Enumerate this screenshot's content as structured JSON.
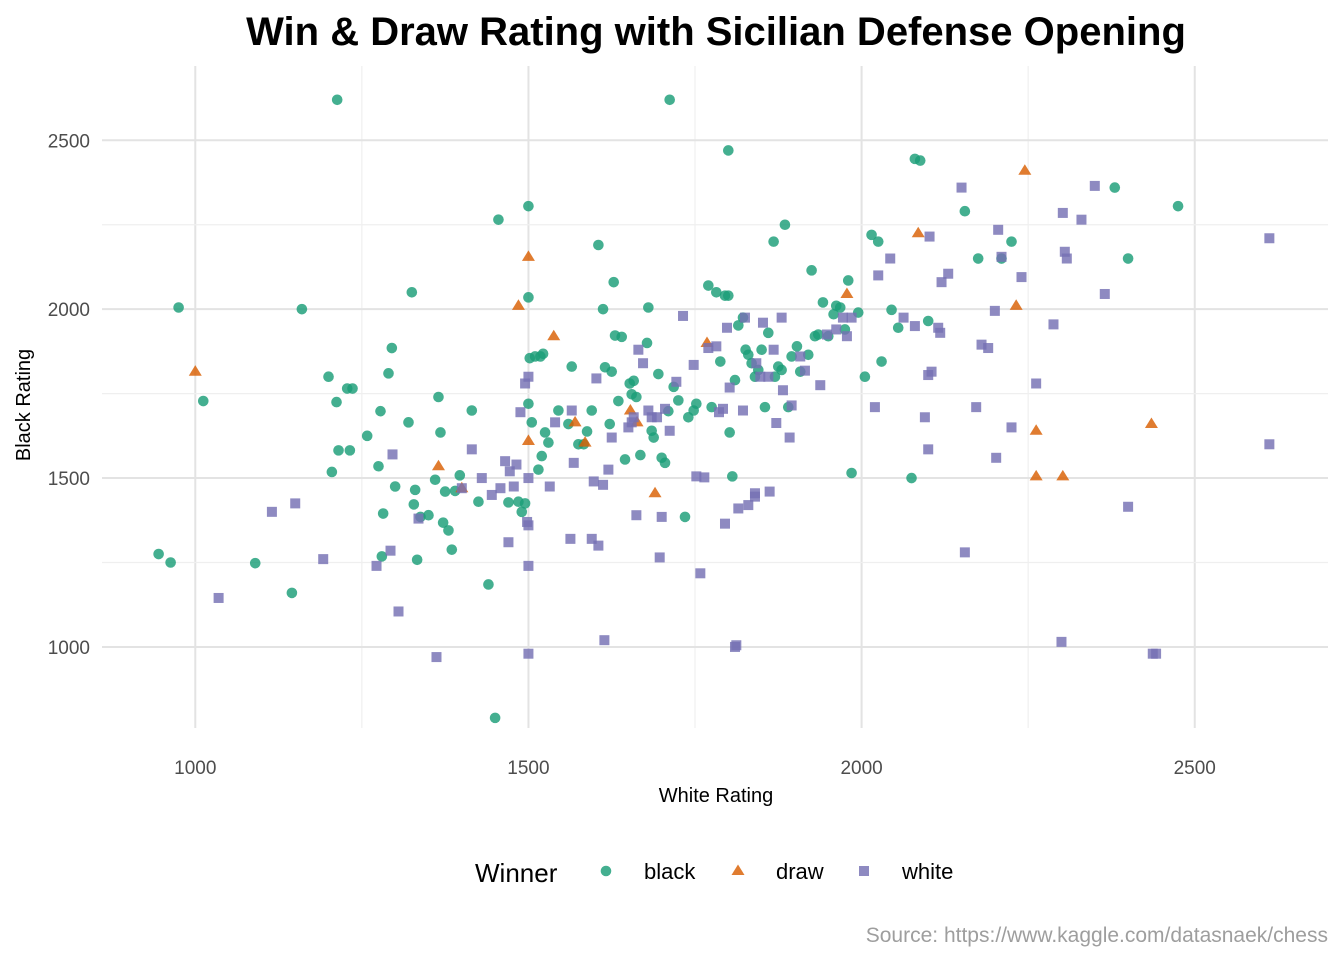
{
  "chart_data": {
    "type": "scatter",
    "title": "Win & Draw Rating with Sicilian Defense Opening",
    "xlabel": "White Rating",
    "ylabel": "Black Rating",
    "xlim": [
      860,
      2700
    ],
    "ylim": [
      760,
      2720
    ],
    "xticks": [
      1000,
      1500,
      2000,
      2500
    ],
    "yticks": [
      1000,
      1500,
      2000,
      2500
    ],
    "legend_title": "Winner",
    "legend_position": "bottom",
    "caption": "Source: https://www.kaggle.com/datasnaek/chess",
    "colors": {
      "black": "#1b9e77",
      "draw": "#d95f02",
      "white": "#7570b3"
    },
    "series": [
      {
        "name": "black",
        "shape": "circle",
        "points": [
          [
            1213,
            2620
          ],
          [
            1712,
            2620
          ],
          [
            1800,
            2470
          ],
          [
            975,
            2005
          ],
          [
            1160,
            2000
          ],
          [
            1012,
            1728
          ],
          [
            945,
            1275
          ],
          [
            963,
            1250
          ],
          [
            1090,
            1248
          ],
          [
            1145,
            1160
          ],
          [
            1205,
            1518
          ],
          [
            1212,
            1725
          ],
          [
            1228,
            1765
          ],
          [
            1236,
            1765
          ],
          [
            1200,
            1800
          ],
          [
            1215,
            1582
          ],
          [
            1232,
            1582
          ],
          [
            1258,
            1625
          ],
          [
            1275,
            1535
          ],
          [
            1278,
            1698
          ],
          [
            1282,
            1395
          ],
          [
            1280,
            1268
          ],
          [
            1290,
            1810
          ],
          [
            1295,
            1885
          ],
          [
            1300,
            1475
          ],
          [
            1320,
            1665
          ],
          [
            1325,
            2050
          ],
          [
            1328,
            1422
          ],
          [
            1330,
            1465
          ],
          [
            1333,
            1258
          ],
          [
            1338,
            1385
          ],
          [
            1350,
            1390
          ],
          [
            1360,
            1495
          ],
          [
            1365,
            1740
          ],
          [
            1368,
            1635
          ],
          [
            1372,
            1368
          ],
          [
            1375,
            1460
          ],
          [
            1380,
            1345
          ],
          [
            1385,
            1288
          ],
          [
            1390,
            1462
          ],
          [
            1397,
            1508
          ],
          [
            1415,
            1700
          ],
          [
            1425,
            1430
          ],
          [
            1440,
            1185
          ],
          [
            1450,
            790
          ],
          [
            1455,
            2265
          ],
          [
            1470,
            1428
          ],
          [
            1485,
            1430
          ],
          [
            1490,
            1400
          ],
          [
            1495,
            1425
          ],
          [
            1500,
            2305
          ],
          [
            1500,
            2035
          ],
          [
            1500,
            1720
          ],
          [
            1502,
            1855
          ],
          [
            1505,
            1665
          ],
          [
            1510,
            1860
          ],
          [
            1515,
            1525
          ],
          [
            1518,
            1860
          ],
          [
            1522,
            1868
          ],
          [
            1520,
            1565
          ],
          [
            1525,
            1635
          ],
          [
            1530,
            1605
          ],
          [
            1545,
            1700
          ],
          [
            1560,
            1660
          ],
          [
            1565,
            1830
          ],
          [
            1575,
            1600
          ],
          [
            1583,
            1600
          ],
          [
            1588,
            1638
          ],
          [
            1595,
            1700
          ],
          [
            1605,
            2190
          ],
          [
            1612,
            2000
          ],
          [
            1615,
            1828
          ],
          [
            1622,
            1660
          ],
          [
            1625,
            1815
          ],
          [
            1628,
            2080
          ],
          [
            1630,
            1922
          ],
          [
            1635,
            1728
          ],
          [
            1640,
            1918
          ],
          [
            1645,
            1555
          ],
          [
            1652,
            1780
          ],
          [
            1655,
            1748
          ],
          [
            1658,
            1788
          ],
          [
            1662,
            1740
          ],
          [
            1668,
            1568
          ],
          [
            1678,
            1900
          ],
          [
            1680,
            2005
          ],
          [
            1685,
            1640
          ],
          [
            1688,
            1620
          ],
          [
            1695,
            1808
          ],
          [
            1700,
            1560
          ],
          [
            1705,
            1545
          ],
          [
            1710,
            1698
          ],
          [
            1718,
            1770
          ],
          [
            1725,
            1730
          ],
          [
            1735,
            1385
          ],
          [
            1740,
            1680
          ],
          [
            1748,
            1700
          ],
          [
            1752,
            1720
          ],
          [
            1770,
            2070
          ],
          [
            1775,
            1710
          ],
          [
            1782,
            2050
          ],
          [
            1788,
            1845
          ],
          [
            1795,
            2040
          ],
          [
            1800,
            2040
          ],
          [
            1802,
            1635
          ],
          [
            1806,
            1505
          ],
          [
            1810,
            1790
          ],
          [
            1815,
            1952
          ],
          [
            1822,
            1975
          ],
          [
            1826,
            1880
          ],
          [
            1830,
            1865
          ],
          [
            1835,
            1840
          ],
          [
            1840,
            1800
          ],
          [
            1845,
            1820
          ],
          [
            1850,
            1880
          ],
          [
            1855,
            1710
          ],
          [
            1860,
            1930
          ],
          [
            1868,
            2200
          ],
          [
            1870,
            1800
          ],
          [
            1875,
            1830
          ],
          [
            1880,
            1820
          ],
          [
            1885,
            2250
          ],
          [
            1890,
            1710
          ],
          [
            1895,
            1860
          ],
          [
            1903,
            1890
          ],
          [
            1908,
            1815
          ],
          [
            1920,
            1865
          ],
          [
            1925,
            2115
          ],
          [
            1930,
            1920
          ],
          [
            1935,
            1925
          ],
          [
            1942,
            2020
          ],
          [
            1950,
            1920
          ],
          [
            1958,
            1985
          ],
          [
            1962,
            2010
          ],
          [
            1968,
            2005
          ],
          [
            1975,
            1940
          ],
          [
            1980,
            2085
          ],
          [
            1985,
            1515
          ],
          [
            1995,
            1990
          ],
          [
            2005,
            1800
          ],
          [
            2015,
            2220
          ],
          [
            2025,
            2200
          ],
          [
            2030,
            1845
          ],
          [
            2045,
            1998
          ],
          [
            2055,
            1945
          ],
          [
            2075,
            1500
          ],
          [
            2080,
            2445
          ],
          [
            2088,
            2440
          ],
          [
            2100,
            1965
          ],
          [
            2155,
            2290
          ],
          [
            2175,
            2150
          ],
          [
            2210,
            2150
          ],
          [
            2225,
            2200
          ],
          [
            2380,
            2360
          ],
          [
            2400,
            2150
          ],
          [
            2475,
            2305
          ]
        ]
      },
      {
        "name": "draw",
        "shape": "triangle",
        "points": [
          [
            1000,
            1815
          ],
          [
            1365,
            1535
          ],
          [
            1400,
            1470
          ],
          [
            1485,
            2010
          ],
          [
            1500,
            1610
          ],
          [
            1500,
            2155
          ],
          [
            1538,
            1920
          ],
          [
            1570,
            1665
          ],
          [
            1585,
            1605
          ],
          [
            1653,
            1700
          ],
          [
            1663,
            1665
          ],
          [
            1690,
            1455
          ],
          [
            1768,
            1900
          ],
          [
            1978,
            2045
          ],
          [
            2085,
            2225
          ],
          [
            2232,
            2010
          ],
          [
            2245,
            2410
          ],
          [
            2262,
            1640
          ],
          [
            2262,
            1505
          ],
          [
            2302,
            1505
          ],
          [
            2435,
            1660
          ]
        ]
      },
      {
        "name": "white",
        "shape": "square",
        "points": [
          [
            1035,
            1145
          ],
          [
            1115,
            1400
          ],
          [
            1150,
            1425
          ],
          [
            1192,
            1260
          ],
          [
            1272,
            1240
          ],
          [
            1293,
            1285
          ],
          [
            1296,
            1570
          ],
          [
            1305,
            1105
          ],
          [
            1335,
            1380
          ],
          [
            1362,
            970
          ],
          [
            1400,
            1470
          ],
          [
            1415,
            1585
          ],
          [
            1430,
            1500
          ],
          [
            1445,
            1450
          ],
          [
            1458,
            1470
          ],
          [
            1465,
            1550
          ],
          [
            1470,
            1310
          ],
          [
            1472,
            1520
          ],
          [
            1478,
            1475
          ],
          [
            1482,
            1540
          ],
          [
            1488,
            1695
          ],
          [
            1495,
            1780
          ],
          [
            1498,
            1370
          ],
          [
            1500,
            1800
          ],
          [
            1500,
            1500
          ],
          [
            1500,
            1360
          ],
          [
            1500,
            1240
          ],
          [
            1500,
            980
          ],
          [
            1532,
            1475
          ],
          [
            1540,
            1665
          ],
          [
            1563,
            1320
          ],
          [
            1565,
            1700
          ],
          [
            1568,
            1545
          ],
          [
            1595,
            1320
          ],
          [
            1598,
            1490
          ],
          [
            1602,
            1795
          ],
          [
            1605,
            1300
          ],
          [
            1612,
            1480
          ],
          [
            1614,
            1020
          ],
          [
            1620,
            1525
          ],
          [
            1625,
            1620
          ],
          [
            1650,
            1650
          ],
          [
            1655,
            1665
          ],
          [
            1658,
            1680
          ],
          [
            1662,
            1390
          ],
          [
            1665,
            1880
          ],
          [
            1672,
            1840
          ],
          [
            1680,
            1700
          ],
          [
            1685,
            1680
          ],
          [
            1693,
            1680
          ],
          [
            1697,
            1265
          ],
          [
            1700,
            1385
          ],
          [
            1705,
            1705
          ],
          [
            1712,
            1640
          ],
          [
            1722,
            1785
          ],
          [
            1732,
            1980
          ],
          [
            1748,
            1835
          ],
          [
            1752,
            1505
          ],
          [
            1758,
            1218
          ],
          [
            1764,
            1502
          ],
          [
            1770,
            1885
          ],
          [
            1782,
            1890
          ],
          [
            1786,
            1695
          ],
          [
            1792,
            1705
          ],
          [
            1795,
            1365
          ],
          [
            1798,
            1945
          ],
          [
            1802,
            1768
          ],
          [
            1810,
            1000
          ],
          [
            1812,
            1005
          ],
          [
            1815,
            1410
          ],
          [
            1822,
            1700
          ],
          [
            1825,
            1975
          ],
          [
            1830,
            1420
          ],
          [
            1840,
            1455
          ],
          [
            1840,
            1445
          ],
          [
            1842,
            1840
          ],
          [
            1848,
            1800
          ],
          [
            1852,
            1960
          ],
          [
            1860,
            1800
          ],
          [
            1862,
            1460
          ],
          [
            1868,
            1880
          ],
          [
            1872,
            1663
          ],
          [
            1880,
            1975
          ],
          [
            1882,
            1760
          ],
          [
            1892,
            1620
          ],
          [
            1895,
            1715
          ],
          [
            1908,
            1860
          ],
          [
            1915,
            1818
          ],
          [
            1938,
            1775
          ],
          [
            1948,
            1925
          ],
          [
            1962,
            1940
          ],
          [
            1972,
            1975
          ],
          [
            1978,
            1920
          ],
          [
            1985,
            1975
          ],
          [
            2020,
            1710
          ],
          [
            2025,
            2100
          ],
          [
            2043,
            2150
          ],
          [
            2063,
            1975
          ],
          [
            2080,
            1950
          ],
          [
            2095,
            1680
          ],
          [
            2100,
            1805
          ],
          [
            2100,
            1585
          ],
          [
            2102,
            2215
          ],
          [
            2105,
            1815
          ],
          [
            2115,
            1945
          ],
          [
            2118,
            1930
          ],
          [
            2120,
            2080
          ],
          [
            2130,
            2105
          ],
          [
            2150,
            2360
          ],
          [
            2155,
            1280
          ],
          [
            2172,
            1710
          ],
          [
            2180,
            1895
          ],
          [
            2190,
            1885
          ],
          [
            2200,
            1995
          ],
          [
            2202,
            1560
          ],
          [
            2205,
            2235
          ],
          [
            2210,
            2155
          ],
          [
            2225,
            1650
          ],
          [
            2240,
            2095
          ],
          [
            2262,
            1780
          ],
          [
            2288,
            1955
          ],
          [
            2300,
            1015
          ],
          [
            2302,
            2285
          ],
          [
            2305,
            2170
          ],
          [
            2308,
            2150
          ],
          [
            2330,
            2265
          ],
          [
            2350,
            2365
          ],
          [
            2365,
            2045
          ],
          [
            2400,
            1415
          ],
          [
            2437,
            980
          ],
          [
            2442,
            980
          ],
          [
            2612,
            2210
          ],
          [
            2612,
            1600
          ]
        ]
      }
    ]
  }
}
